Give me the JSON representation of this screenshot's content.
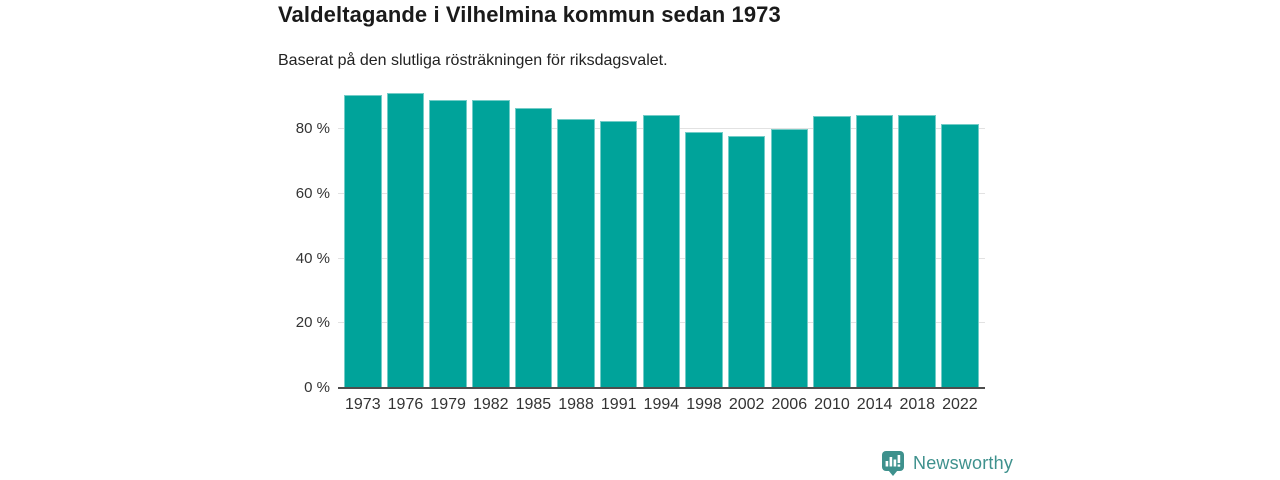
{
  "header": {
    "title": "Valdeltagande i Vilhelmina kommun sedan 1973",
    "subtitle": "Baserat på den slutliga rösträkningen för riksdagsvalet."
  },
  "chart_data": {
    "type": "bar",
    "title": "Valdeltagande i Vilhelmina kommun sedan 1973",
    "subtitle": "Baserat på den slutliga rösträkningen för riksdagsvalet.",
    "categories": [
      "1973",
      "1976",
      "1979",
      "1982",
      "1985",
      "1988",
      "1991",
      "1994",
      "1998",
      "2002",
      "2006",
      "2010",
      "2014",
      "2018",
      "2022"
    ],
    "values": [
      90.5,
      91.1,
      89.0,
      88.9,
      86.6,
      83.2,
      82.4,
      84.4,
      79.0,
      77.7,
      79.9,
      84.1,
      84.4,
      84.4,
      81.7
    ],
    "unit": "%",
    "xlabel": "",
    "ylabel": "",
    "yticks": [
      0,
      20,
      40,
      60,
      80
    ],
    "ytick_labels": [
      "0 %",
      "20 %",
      "40 %",
      "60 %",
      "80 %"
    ],
    "ylim": [
      0,
      95.75
    ],
    "grid": true,
    "legend": "none",
    "bar_color": "#00a39a",
    "gridline_color": "#e2e2e2",
    "axis_line_color": "#4d4d4d",
    "tick_label_color": "#333333"
  },
  "footer": {
    "brand": "Newsworthy",
    "brand_color": "#3e918d",
    "logo_icon": "newsworthy-speech-bubble-bar-chart-icon"
  }
}
